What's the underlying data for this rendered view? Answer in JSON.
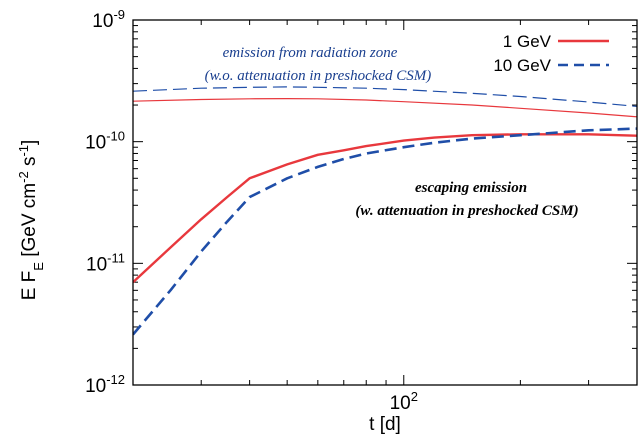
{
  "chart_data": {
    "type": "line",
    "title": "",
    "xlabel": "t [d]",
    "ylabel": "E F_E [GeV cm^-2 s^-1]",
    "xscale": "log",
    "yscale": "log",
    "xlim": [
      20,
      400
    ],
    "ylim": [
      1e-12,
      1e-09
    ],
    "x_ticks": [
      {
        "value": 100,
        "base": "10",
        "exp": "2"
      }
    ],
    "y_ticks": [
      {
        "value": 1e-12,
        "base": "10",
        "exp": "-12"
      },
      {
        "value": 1e-11,
        "base": "10",
        "exp": "-11"
      },
      {
        "value": 1e-10,
        "base": "10",
        "exp": "-10"
      },
      {
        "value": 1e-09,
        "base": "10",
        "exp": "-9"
      }
    ],
    "grid": false,
    "legend": {
      "position": "top-right"
    },
    "colors": {
      "red": "#e8383d",
      "blue": "#1f4ea8"
    },
    "series": [
      {
        "name": "1 GeV",
        "legend": true,
        "color": "#e8383d",
        "style": "solid",
        "width": 2.4,
        "x": [
          20,
          25,
          30,
          35,
          40,
          50,
          60,
          70,
          80,
          100,
          120,
          150,
          200,
          250,
          300,
          400
        ],
        "y": [
          7e-12,
          1.35e-11,
          2.3e-11,
          3.5e-11,
          5e-11,
          6.5e-11,
          7.8e-11,
          8.5e-11,
          9.2e-11,
          1.02e-10,
          1.08e-10,
          1.13e-10,
          1.15e-10,
          1.15e-10,
          1.15e-10,
          1.12e-10
        ]
      },
      {
        "name": "10 GeV",
        "legend": true,
        "color": "#1f4ea8",
        "style": "dashed",
        "width": 2.6,
        "x": [
          20,
          25,
          30,
          35,
          40,
          50,
          60,
          70,
          80,
          100,
          120,
          150,
          200,
          250,
          300,
          400
        ],
        "y": [
          2.6e-12,
          6e-12,
          1.25e-11,
          2.2e-11,
          3.5e-11,
          5e-11,
          6.2e-11,
          7.2e-11,
          8e-11,
          9e-11,
          9.8e-11,
          1.06e-10,
          1.13e-10,
          1.19e-10,
          1.24e-10,
          1.28e-10
        ]
      },
      {
        "legend": false,
        "color": "#e8383d",
        "style": "solid",
        "width": 1.2,
        "x": [
          20,
          30,
          40,
          50,
          60,
          80,
          100,
          150,
          200,
          300,
          400
        ],
        "y": [
          2.15e-10,
          2.22e-10,
          2.25e-10,
          2.26e-10,
          2.25e-10,
          2.2e-10,
          2.13e-10,
          2e-10,
          1.88e-10,
          1.72e-10,
          1.6e-10
        ]
      },
      {
        "legend": false,
        "color": "#1f4ea8",
        "style": "dashed",
        "width": 1.2,
        "x": [
          20,
          30,
          40,
          50,
          60,
          80,
          100,
          150,
          200,
          300,
          400
        ],
        "y": [
          2.6e-10,
          2.75e-10,
          2.8e-10,
          2.82e-10,
          2.8e-10,
          2.75e-10,
          2.68e-10,
          2.5e-10,
          2.35e-10,
          2.12e-10,
          1.95e-10
        ]
      }
    ],
    "annotations": [
      {
        "id": "rad1",
        "text": "emission from radiation zone",
        "style": "italic",
        "color": "#1a3f8f"
      },
      {
        "id": "rad2",
        "text": "(w.o. attenuation in preshocked CSM)",
        "style": "italic",
        "color": "#1a3f8f"
      },
      {
        "id": "esc1",
        "text": "escaping emission",
        "style": "bold-italic",
        "color": "#000000"
      },
      {
        "id": "esc2",
        "text": "(w. attenuation in preshocked CSM)",
        "style": "bold-italic",
        "color": "#000000"
      }
    ]
  }
}
